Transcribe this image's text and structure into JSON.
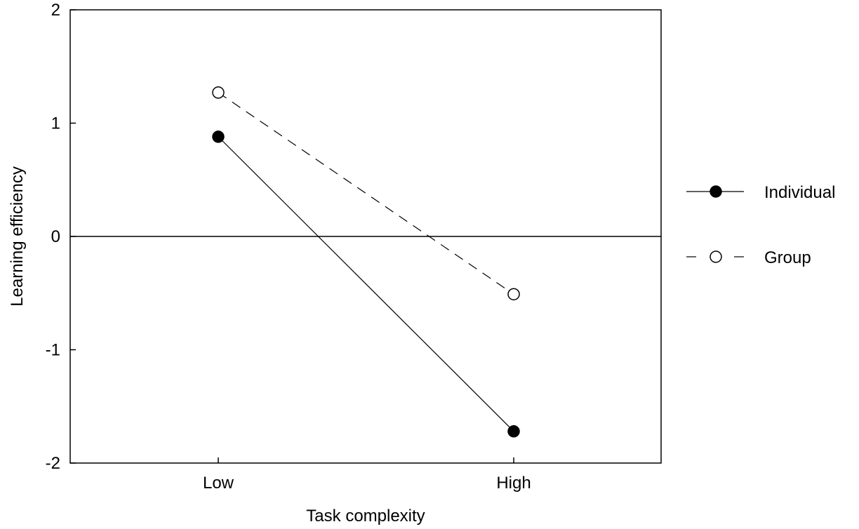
{
  "chart_data": {
    "type": "line",
    "title": "",
    "xlabel": "Task complexity",
    "ylabel": "Learning efficiency",
    "categories": [
      "Low",
      "High"
    ],
    "ylim": [
      -2,
      2
    ],
    "yticks": [
      "2",
      "1",
      "0",
      "-1",
      "-2"
    ],
    "reference_line_y": 0,
    "grid": false,
    "legend_position": "right",
    "series": [
      {
        "name": "Individual",
        "values": [
          0.88,
          -1.72
        ],
        "marker": "filled-circle",
        "line_style": "solid",
        "color": "#000000"
      },
      {
        "name": "Group",
        "values": [
          1.27,
          -0.51
        ],
        "marker": "open-circle",
        "line_style": "dashed",
        "color": "#000000"
      }
    ]
  }
}
